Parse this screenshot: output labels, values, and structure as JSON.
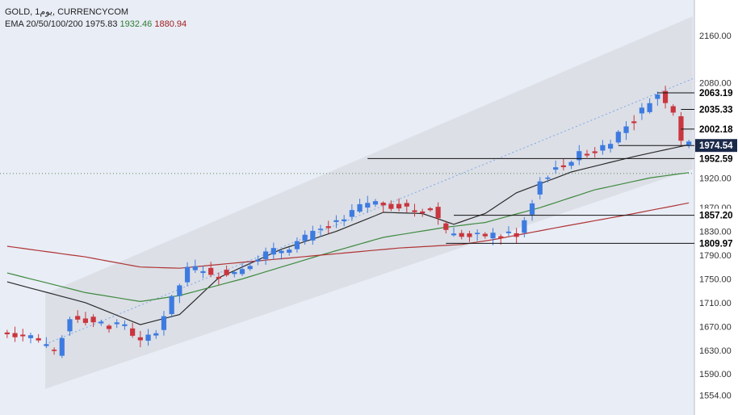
{
  "legend": {
    "line1": "GOLD, 1يوم, CURRENCYCOM",
    "ema_label": "EMA 20/50/100/200",
    "ema_values": [
      "1975.83",
      "1932.46",
      "1880.94"
    ]
  },
  "colors": {
    "background": "#e9edf6",
    "channel": "#d9dce3",
    "bull": "#3d7be0",
    "bear": "#c9363e",
    "ema20": "#2b2b2b",
    "ema50": "#3f8a3f",
    "ema100": "#b03535",
    "midline": "#7fa8e8",
    "pricebox": "#1b2a4a"
  },
  "chart_data": {
    "type": "candlestick",
    "ylim": [
      1540,
      2195
    ],
    "yticks": [
      1554,
      1590,
      1630,
      1670,
      1710,
      1750,
      1790,
      1830,
      1870,
      1920,
      2080,
      2160
    ],
    "ytick_labels": [
      "1554.00",
      "1590.00",
      "1630.00",
      "1670.00",
      "1710.00",
      "1750.00",
      "1790.00",
      "1830.00",
      "1870.00",
      "1920.00",
      "2080.00",
      "2160.00"
    ],
    "current_price": 1974.54,
    "levels": [
      {
        "value": 2063.19,
        "label": "2063.19",
        "from": 83
      },
      {
        "value": 2035.33,
        "label": "2035.33",
        "from": 86
      },
      {
        "value": 2002.18,
        "label": "2002.18",
        "from": 86
      },
      {
        "value": 1974.54,
        "label": "1974.54",
        "from": 78,
        "current": true
      },
      {
        "value": 1952.59,
        "label": "1952.59",
        "from": 46
      },
      {
        "value": 1857.2,
        "label": "1857.20",
        "from": 57
      },
      {
        "value": 1809.97,
        "label": "1809.97",
        "from": 56
      }
    ],
    "series": [
      {
        "name": "EMA 20",
        "points": [
          [
            0,
            1745
          ],
          [
            10,
            1710
          ],
          [
            17,
            1673
          ],
          [
            22,
            1690
          ],
          [
            27,
            1752
          ],
          [
            35,
            1800
          ],
          [
            42,
            1830
          ],
          [
            48,
            1862
          ],
          [
            53,
            1860
          ],
          [
            57,
            1842
          ],
          [
            61,
            1860
          ],
          [
            65,
            1895
          ],
          [
            72,
            1930
          ],
          [
            80,
            1956
          ],
          [
            87,
            1976
          ]
        ]
      },
      {
        "name": "EMA 50",
        "points": [
          [
            0,
            1760
          ],
          [
            10,
            1727
          ],
          [
            17,
            1712
          ],
          [
            22,
            1722
          ],
          [
            30,
            1750
          ],
          [
            40,
            1790
          ],
          [
            48,
            1820
          ],
          [
            56,
            1837
          ],
          [
            61,
            1845
          ],
          [
            68,
            1870
          ],
          [
            75,
            1900
          ],
          [
            82,
            1920
          ],
          [
            87,
            1929
          ]
        ]
      },
      {
        "name": "EMA 100",
        "points": [
          [
            0,
            1805
          ],
          [
            10,
            1787
          ],
          [
            17,
            1770
          ],
          [
            22,
            1768
          ],
          [
            30,
            1778
          ],
          [
            40,
            1790
          ],
          [
            50,
            1802
          ],
          [
            58,
            1808
          ],
          [
            62,
            1816
          ],
          [
            70,
            1836
          ],
          [
            80,
            1860
          ],
          [
            87,
            1878
          ]
        ]
      }
    ]
  }
}
